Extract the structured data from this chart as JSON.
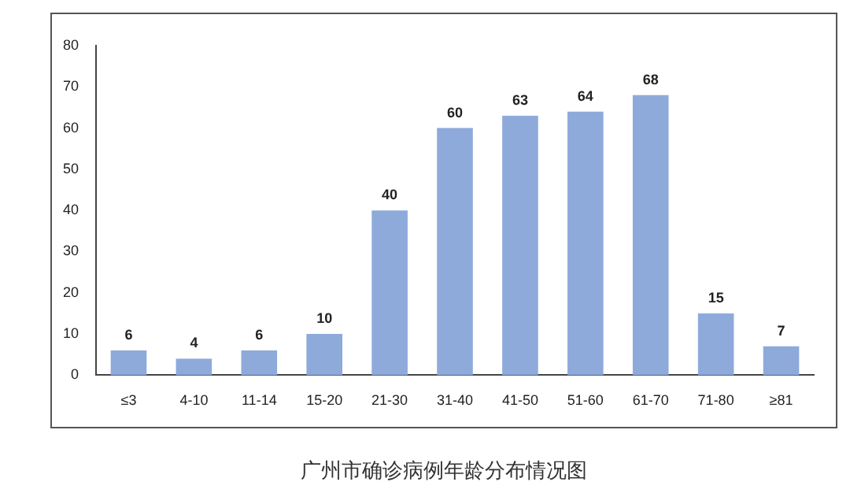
{
  "chart_data": {
    "type": "bar",
    "title": "广州市确诊病例年龄分布情况图",
    "categories": [
      "≤3",
      "4-10",
      "11-14",
      "15-20",
      "21-30",
      "31-40",
      "41-50",
      "51-60",
      "61-70",
      "71-80",
      "≥81"
    ],
    "values": [
      6,
      4,
      6,
      10,
      40,
      60,
      63,
      64,
      68,
      15,
      7
    ],
    "color": "#8eaadb",
    "ylim": [
      0,
      80
    ],
    "yticks": [
      0,
      10,
      20,
      30,
      40,
      50,
      60,
      70,
      80
    ],
    "grid": false,
    "legend": false,
    "data_labels": true
  }
}
